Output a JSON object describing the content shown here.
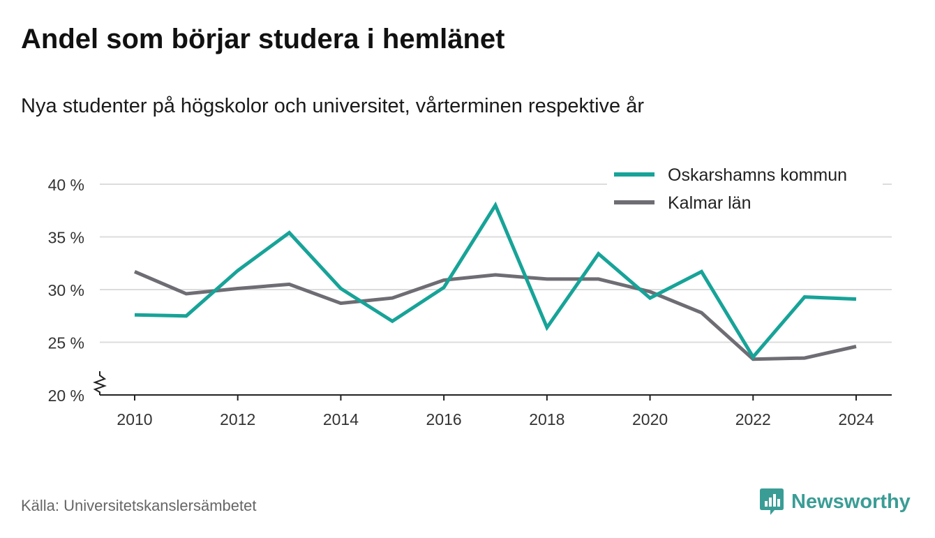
{
  "title": "Andel som börjar studera i hemlänet",
  "subtitle": "Nya studenter på högskolor och universitet, vårterminen respektive år",
  "source": "Källa: Universitetskanslersämbetet",
  "brand": {
    "name": "Newsworthy",
    "icon": "newsworthy-logo-icon",
    "color": "#3a9d95"
  },
  "chart_data": {
    "type": "line",
    "x": [
      2010,
      2011,
      2012,
      2013,
      2014,
      2015,
      2016,
      2017,
      2018,
      2019,
      2020,
      2021,
      2022,
      2023,
      2024
    ],
    "x_ticks": [
      "2010",
      "2012",
      "2014",
      "2016",
      "2018",
      "2020",
      "2022",
      "2024"
    ],
    "y_ticks": [
      "20 %",
      "25 %",
      "30 %",
      "35 %",
      "40 %"
    ],
    "ylim": [
      20,
      40
    ],
    "y_axis_break": true,
    "grid": true,
    "legend_position": "top-right",
    "series": [
      {
        "name": "Oskarshamns kommun",
        "color": "#17a398",
        "values": [
          27.6,
          27.5,
          31.8,
          35.4,
          30.1,
          27.0,
          30.2,
          38.0,
          26.4,
          33.4,
          29.2,
          31.7,
          23.6,
          29.3,
          29.1
        ]
      },
      {
        "name": "Kalmar län",
        "color": "#6e6d73",
        "values": [
          31.7,
          29.6,
          30.1,
          30.5,
          28.7,
          29.2,
          30.9,
          31.4,
          31.0,
          31.0,
          29.8,
          27.8,
          23.4,
          23.5,
          24.6
        ]
      }
    ]
  }
}
